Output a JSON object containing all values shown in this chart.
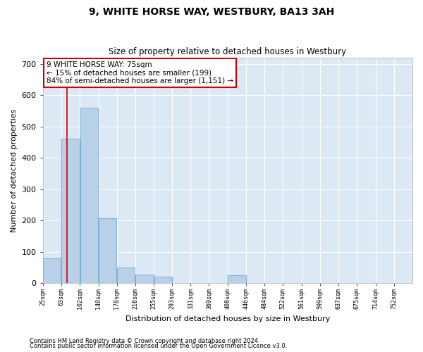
{
  "title1": "9, WHITE HORSE WAY, WESTBURY, BA13 3AH",
  "title2": "Size of property relative to detached houses in Westbury",
  "xlabel": "Distribution of detached houses by size in Westbury",
  "ylabel": "Number of detached properties",
  "footnote1": "Contains HM Land Registry data © Crown copyright and database right 2024.",
  "footnote2": "Contains public sector information licensed under the Open Government Licence v3.0.",
  "bar_color": "#b8d0e8",
  "bar_edge_color": "#7aafd4",
  "background_color": "#dce9f5",
  "fig_background": "#ffffff",
  "grid_color": "#ffffff",
  "red_line_x": 75,
  "annotation_text": "9 WHITE HORSE WAY: 75sqm\n← 15% of detached houses are smaller (199)\n84% of semi-detached houses are larger (1,151) →",
  "annotation_box_color": "#ffffff",
  "annotation_box_edge": "#cc0000",
  "bin_edges": [
    25,
    63,
    102,
    140,
    178,
    216,
    255,
    293,
    331,
    369,
    408,
    446,
    484,
    522,
    561,
    599,
    637,
    675,
    714,
    752,
    790
  ],
  "counts": [
    80,
    462,
    560,
    207,
    50,
    27,
    20,
    0,
    0,
    0,
    25,
    0,
    0,
    0,
    0,
    0,
    0,
    0,
    0,
    0
  ],
  "ylim": [
    0,
    720
  ],
  "yticks": [
    0,
    100,
    200,
    300,
    400,
    500,
    600,
    700
  ],
  "figsize": [
    6.0,
    5.0
  ],
  "dpi": 100
}
